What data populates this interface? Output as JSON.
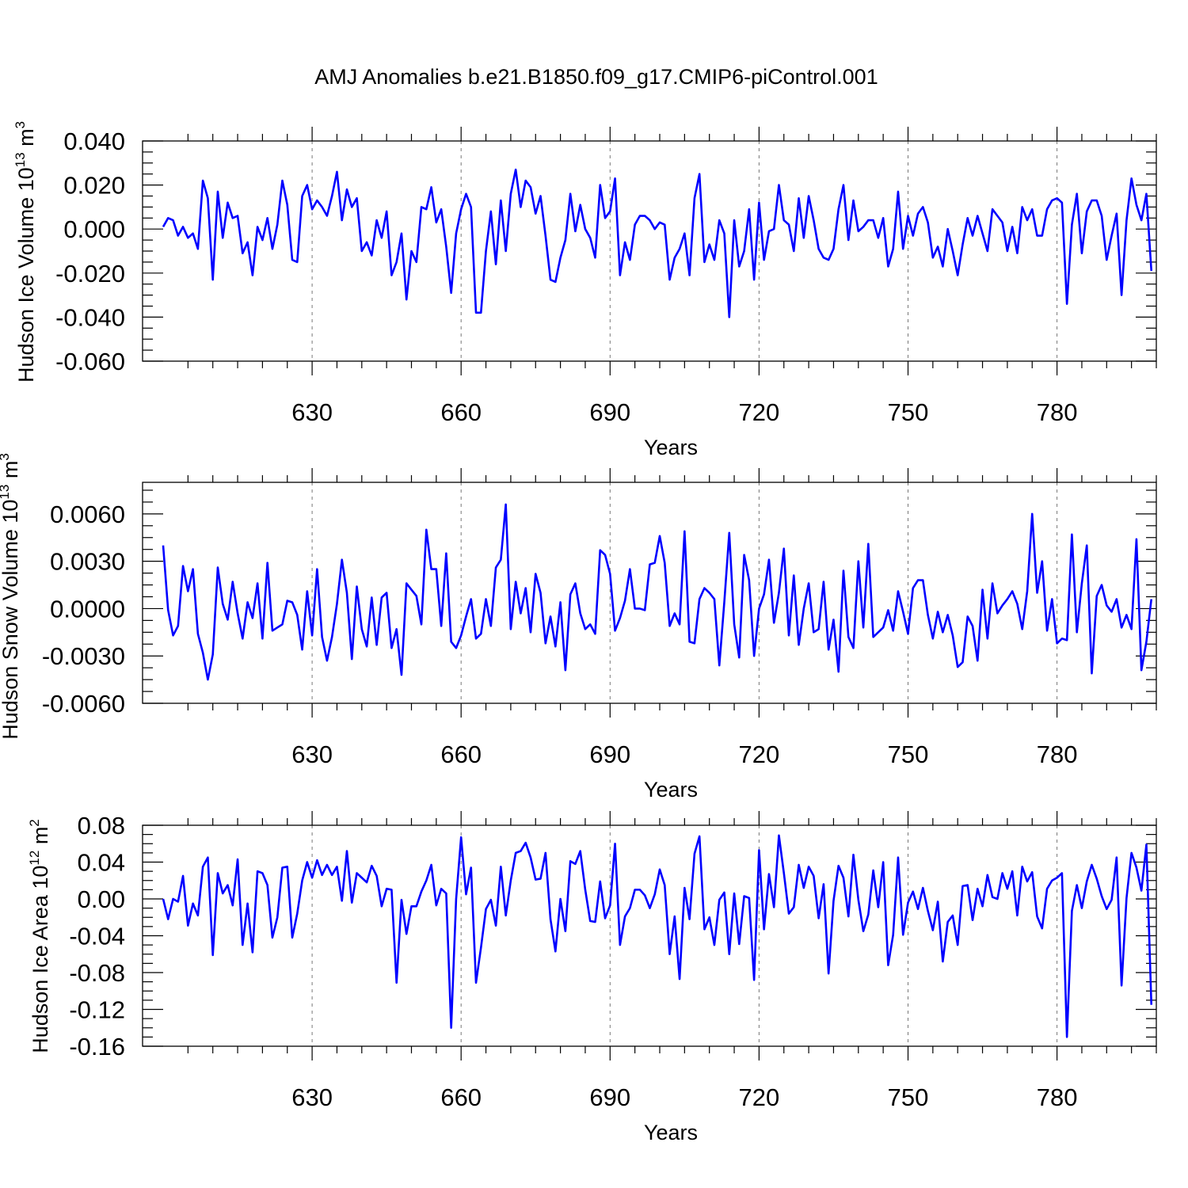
{
  "title": "AMJ Anomalies b.e21.B1850.f09_g17.CMIP6-piControl.001",
  "chart_data": [
    {
      "type": "line",
      "ylabel": "Hudson Ice Volume 10",
      "ylabel_exp": "13",
      "ylabel_unit": " m",
      "ylabel_unit_exp": "3",
      "xlabel": "Years",
      "xlim": [
        600,
        800
      ],
      "ylim": [
        -0.06,
        0.04
      ],
      "xticks": [
        630,
        660,
        690,
        720,
        750,
        780
      ],
      "xtick_labels": [
        "630",
        "660",
        "690",
        "720",
        "750",
        "780"
      ],
      "yticks": [
        -0.06,
        -0.04,
        -0.02,
        0.0,
        0.02,
        0.04
      ],
      "ytick_labels": [
        "-0.060",
        "-0.040",
        "-0.020",
        "0.000",
        "0.020",
        "0.040"
      ],
      "grid": "vertical dashed at x ticks",
      "color": "#0000ff",
      "series": [
        {
          "x_start": 600,
          "x_step": 1,
          "values": [
            0.001,
            0.005,
            0.004,
            -0.003,
            0.001,
            -0.004,
            -0.002,
            -0.009,
            0.022,
            0.014,
            -0.023,
            0.017,
            -0.004,
            0.012,
            0.005,
            0.006,
            -0.011,
            -0.006,
            -0.021,
            0.001,
            -0.005,
            0.005,
            -0.009,
            0.002,
            0.022,
            0.011,
            -0.014,
            -0.015,
            0.015,
            0.02,
            0.009,
            0.013,
            0.01,
            0.006,
            0.015,
            0.026,
            0.004,
            0.018,
            0.01,
            0.014,
            -0.01,
            -0.006,
            -0.012,
            0.004,
            -0.004,
            0.008,
            -0.021,
            -0.015,
            -0.002,
            -0.032,
            -0.01,
            -0.015,
            0.01,
            0.009,
            0.019,
            0.003,
            0.009,
            -0.008,
            -0.029,
            -0.002,
            0.009,
            0.016,
            0.01,
            -0.038,
            -0.038,
            -0.01,
            0.008,
            -0.016,
            0.013,
            -0.01,
            0.016,
            0.027,
            0.01,
            0.022,
            0.019,
            0.007,
            0.015,
            -0.003,
            -0.023,
            -0.024,
            -0.013,
            -0.005,
            0.016,
            -0.001,
            0.011,
            0.0,
            -0.004,
            -0.013,
            0.02,
            0.005,
            0.008,
            0.023,
            -0.021,
            -0.006,
            -0.014,
            0.002,
            0.006,
            0.006,
            0.004,
            0.0,
            0.003,
            0.002,
            -0.023,
            -0.013,
            -0.009,
            -0.002,
            -0.021,
            0.014,
            0.025,
            -0.015,
            -0.007,
            -0.014,
            0.004,
            -0.002,
            -0.04,
            0.004,
            -0.017,
            -0.01,
            0.009,
            -0.023,
            0.012,
            -0.014,
            -0.001,
            0.0,
            0.02,
            0.004,
            0.002,
            -0.01,
            0.014,
            -0.004,
            0.015,
            0.004,
            -0.009,
            -0.013,
            -0.014,
            -0.009,
            0.009,
            0.02,
            -0.005,
            0.013,
            -0.001,
            0.001,
            0.004,
            0.004,
            -0.004,
            0.005,
            -0.017,
            -0.009,
            0.017,
            -0.009,
            0.006,
            -0.003,
            0.007,
            0.01,
            0.003,
            -0.013,
            -0.008,
            -0.017,
            0.0,
            -0.01,
            -0.021,
            -0.007,
            0.005,
            -0.003,
            0.006,
            -0.002,
            -0.01,
            0.009,
            0.006,
            0.003,
            -0.01,
            0.001,
            -0.011,
            0.01,
            0.004,
            0.009,
            -0.003,
            -0.003,
            0.009,
            0.013,
            0.014,
            0.012,
            -0.034,
            0.002,
            0.016,
            -0.011,
            0.008,
            0.013,
            0.013,
            0.006,
            -0.014,
            -0.003,
            0.007,
            -0.03,
            0.004,
            0.023,
            0.011,
            0.004,
            0.016,
            -0.019
          ]
        }
      ]
    },
    {
      "type": "line",
      "ylabel": "Hudson Snow Volume 10",
      "ylabel_exp": "13",
      "ylabel_unit": " m",
      "ylabel_unit_exp": "3",
      "xlabel": "Years",
      "xlim": [
        600,
        800
      ],
      "ylim": [
        -0.006,
        0.008
      ],
      "xticks": [
        630,
        660,
        690,
        720,
        750,
        780
      ],
      "xtick_labels": [
        "630",
        "660",
        "690",
        "720",
        "750",
        "780"
      ],
      "yticks": [
        -0.006,
        -0.003,
        0.0,
        0.003,
        0.006
      ],
      "ytick_labels": [
        "-0.0060",
        "-0.0030",
        "0.0000",
        "0.0030",
        "0.0060"
      ],
      "grid": "vertical dashed at x ticks",
      "color": "#0000ff",
      "series": [
        {
          "x_start": 600,
          "x_step": 1,
          "values": [
            0.004,
            -0.0001,
            -0.0017,
            -0.0011,
            0.0027,
            0.0011,
            0.0025,
            -0.0016,
            -0.0028,
            -0.0045,
            -0.0029,
            0.0026,
            0.0003,
            -0.0007,
            0.0017,
            -0.0003,
            -0.0019,
            0.0004,
            -0.0006,
            0.0016,
            -0.0019,
            0.0029,
            -0.0014,
            -0.0012,
            -0.001,
            0.0005,
            0.0004,
            -0.0004,
            -0.0026,
            0.0011,
            -0.0017,
            0.0025,
            -0.0018,
            -0.0033,
            -0.0018,
            0.0003,
            0.0031,
            0.001,
            -0.0032,
            0.0014,
            -0.0013,
            -0.0024,
            0.0007,
            -0.0023,
            0.0007,
            0.001,
            -0.0025,
            -0.0013,
            -0.0042,
            0.0016,
            0.0012,
            0.0008,
            -0.001,
            0.005,
            0.0025,
            0.0025,
            -0.0011,
            0.0035,
            -0.0021,
            -0.0025,
            -0.0017,
            -0.0005,
            0.0006,
            -0.0019,
            -0.0016,
            0.0006,
            -0.0011,
            0.0026,
            0.0031,
            0.0066,
            -0.0013,
            0.0017,
            -0.0003,
            0.0013,
            -0.0015,
            0.0022,
            0.001,
            -0.0022,
            -0.0005,
            -0.0024,
            0.0004,
            -0.0039,
            0.0009,
            0.0016,
            -0.0003,
            -0.0013,
            -0.001,
            -0.0016,
            0.0037,
            0.0034,
            0.0022,
            -0.0014,
            -0.0006,
            0.0005,
            0.0025,
            0.0,
            0.0,
            -0.0001,
            0.0028,
            0.0029,
            0.0046,
            0.0029,
            -0.0011,
            -0.0003,
            -0.001,
            0.0049,
            -0.0021,
            -0.0022,
            0.0006,
            0.0013,
            0.001,
            0.0006,
            -0.0036,
            0.0004,
            0.0048,
            -0.001,
            -0.0031,
            0.0034,
            0.0018,
            -0.003,
            0.0,
            0.0009,
            0.0031,
            -0.0009,
            0.001,
            0.0038,
            -0.0017,
            0.0021,
            -0.0023,
            0.0,
            0.0016,
            -0.0015,
            -0.0013,
            0.0017,
            -0.0026,
            -0.0007,
            -0.004,
            0.0024,
            -0.0018,
            -0.0025,
            0.003,
            -0.0012,
            0.0041,
            -0.0018,
            -0.0015,
            -0.0012,
            -0.0001,
            -0.0014,
            0.0011,
            -0.0002,
            -0.0016,
            0.0013,
            0.0018,
            0.0018,
            -0.0004,
            -0.0019,
            -0.0002,
            -0.0015,
            -0.0004,
            -0.0017,
            -0.0037,
            -0.0034,
            -0.0005,
            -0.0011,
            -0.0033,
            0.0012,
            -0.0019,
            0.0016,
            -0.0003,
            0.0002,
            0.0006,
            0.0011,
            0.0003,
            -0.0013,
            0.0011,
            0.006,
            0.001,
            0.003,
            -0.0014,
            0.0006,
            -0.0022,
            -0.0019,
            -0.002,
            0.0047,
            -0.0015,
            0.0016,
            0.004,
            -0.0041,
            0.0008,
            0.0015,
            0.0002,
            -0.0002,
            0.0006,
            -0.0012,
            -0.0004,
            -0.0013,
            0.0044,
            -0.0039,
            -0.0021,
            0.0006
          ]
        }
      ]
    },
    {
      "type": "line",
      "ylabel": "Hudson Ice Area 10",
      "ylabel_exp": "12",
      "ylabel_unit": " m",
      "ylabel_unit_exp": "2",
      "xlabel": "Years",
      "xlim": [
        600,
        800
      ],
      "ylim": [
        -0.16,
        0.08
      ],
      "xticks": [
        630,
        660,
        690,
        720,
        750,
        780
      ],
      "xtick_labels": [
        "630",
        "660",
        "690",
        "720",
        "750",
        "780"
      ],
      "yticks": [
        -0.16,
        -0.12,
        -0.08,
        -0.04,
        0.0,
        0.04,
        0.08
      ],
      "ytick_labels": [
        "-0.16",
        "-0.12",
        "-0.08",
        "-0.04",
        "0.00",
        "0.04",
        "0.08"
      ],
      "grid": "vertical dashed at x ticks",
      "color": "#0000ff",
      "series": [
        {
          "x_start": 600,
          "x_step": 1,
          "values": [
            0.0,
            -0.022,
            0.0,
            -0.003,
            0.025,
            -0.029,
            -0.005,
            -0.018,
            0.035,
            0.045,
            -0.061,
            0.028,
            0.006,
            0.015,
            -0.007,
            0.043,
            -0.05,
            -0.005,
            -0.058,
            0.03,
            0.028,
            0.015,
            -0.042,
            -0.02,
            0.034,
            0.035,
            -0.042,
            -0.016,
            0.02,
            0.04,
            0.023,
            0.042,
            0.026,
            0.037,
            0.026,
            0.035,
            -0.002,
            0.052,
            -0.004,
            0.028,
            0.023,
            0.018,
            0.036,
            0.025,
            -0.008,
            0.011,
            0.01,
            -0.091,
            -0.001,
            -0.038,
            -0.008,
            -0.008,
            0.008,
            0.02,
            0.037,
            -0.007,
            0.011,
            0.006,
            -0.14,
            0.0,
            0.067,
            0.005,
            0.034,
            -0.091,
            -0.053,
            -0.011,
            -0.001,
            -0.029,
            0.035,
            -0.018,
            0.02,
            0.05,
            0.052,
            0.061,
            0.045,
            0.021,
            0.022,
            0.05,
            -0.022,
            -0.057,
            0.0,
            -0.035,
            0.041,
            0.038,
            0.052,
            0.01,
            -0.024,
            -0.025,
            0.019,
            -0.021,
            -0.007,
            0.06,
            -0.05,
            -0.019,
            -0.01,
            0.01,
            0.01,
            0.004,
            -0.01,
            0.005,
            0.032,
            0.015,
            -0.06,
            -0.019,
            -0.087,
            0.012,
            -0.022,
            0.049,
            0.068,
            -0.033,
            -0.02,
            -0.05,
            -0.001,
            0.007,
            -0.06,
            0.006,
            -0.049,
            0.003,
            0.001,
            -0.088,
            0.053,
            -0.033,
            0.027,
            -0.009,
            0.069,
            0.028,
            -0.016,
            -0.009,
            0.037,
            0.012,
            0.035,
            0.025,
            -0.021,
            0.016,
            -0.081,
            -0.002,
            0.036,
            0.023,
            -0.019,
            0.048,
            -0.001,
            -0.035,
            -0.017,
            0.031,
            -0.009,
            0.04,
            -0.072,
            -0.039,
            0.045,
            -0.039,
            -0.004,
            0.008,
            -0.011,
            0.012,
            -0.013,
            -0.034,
            -0.003,
            -0.068,
            -0.025,
            -0.018,
            -0.05,
            0.014,
            0.015,
            -0.023,
            0.011,
            -0.008,
            0.026,
            0.002,
            0.0,
            0.028,
            0.011,
            0.03,
            -0.018,
            0.035,
            0.019,
            0.029,
            -0.019,
            -0.032,
            0.011,
            0.02,
            0.023,
            0.028,
            -0.15,
            -0.013,
            0.015,
            -0.01,
            0.019,
            0.037,
            0.022,
            0.003,
            -0.011,
            -0.001,
            0.045,
            -0.094,
            0.001,
            0.05,
            0.034,
            0.009,
            0.059,
            -0.115
          ]
        }
      ]
    }
  ]
}
